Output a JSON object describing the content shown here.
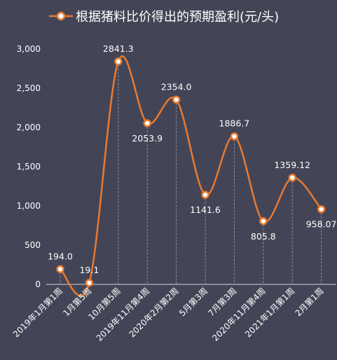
{
  "colors": {
    "background": "#434556",
    "line": "#e8792f",
    "axis": "#d0d2dc",
    "dropline": "#8d90a2",
    "text": "#ffffff"
  },
  "chart_data": {
    "type": "line",
    "smooth": true,
    "legend": {
      "position": "top-center",
      "items": [
        {
          "name": "根据猪料比价得出的预期盈利(元/头)",
          "color": "#e8792f",
          "marker": "circle"
        }
      ]
    },
    "categories": [
      "2019年1月第1周",
      "1月第5周",
      "10月第5周",
      "2019年11月第4周",
      "2020年2月第2周",
      "5月第3周",
      "7月第3周",
      "2020年11月第4周",
      "2021年1月第1周",
      "2月第1周"
    ],
    "series": [
      {
        "name": "根据猪料比价得出的预期盈利(元/头)",
        "values": [
          194.0,
          19.1,
          2841.3,
          2053.9,
          2354.0,
          1141.6,
          1886.7,
          805.8,
          1359.12,
          958.07
        ],
        "labels": [
          "194.0",
          "19.1",
          "2841.3",
          "2053.9",
          "2354.0",
          "1141.6",
          "1886.7",
          "805.8",
          "1359.12",
          "958.07"
        ]
      }
    ],
    "ylim": [
      0,
      3000
    ],
    "yticks": [
      {
        "value": 0,
        "label": "0"
      },
      {
        "value": 500,
        "label": "500"
      },
      {
        "value": 1000,
        "label": "1,000"
      },
      {
        "value": 1500,
        "label": "1,500"
      },
      {
        "value": 2000,
        "label": "2,000"
      },
      {
        "value": 2500,
        "label": "2,500"
      },
      {
        "value": 3000,
        "label": "3,000"
      }
    ],
    "grid": false,
    "droplines": true
  }
}
